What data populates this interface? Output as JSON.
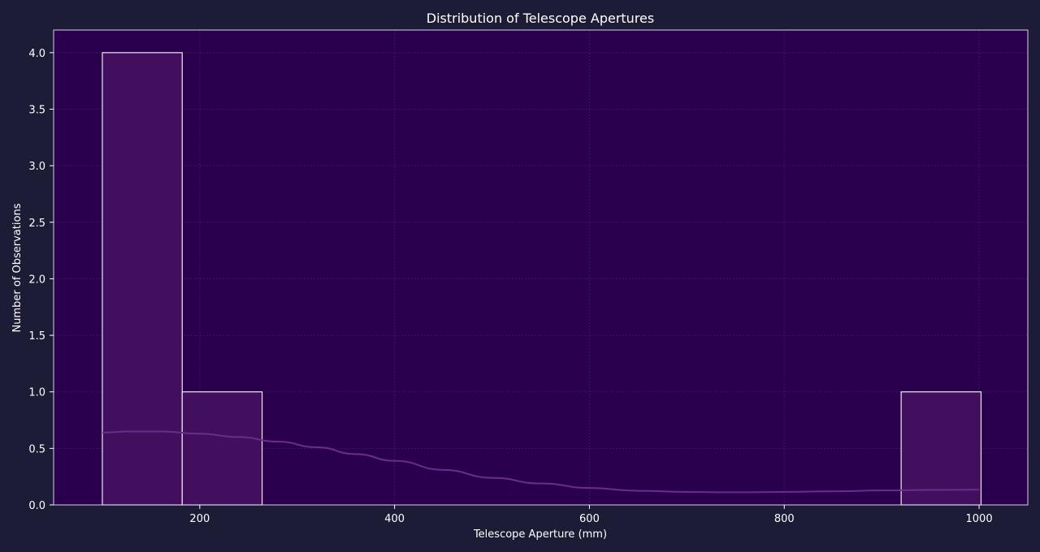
{
  "colors": {
    "figure_background": "#1c1c36",
    "plot_background": "#2a004e",
    "bar_fill": "#420e5e",
    "bar_edge": "#f0e8f8",
    "kde_line": "#6b2d8a",
    "grid": "#4a2a6a",
    "text": "#ffffff"
  },
  "chart_data": {
    "type": "bar",
    "subtype": "histogram",
    "title": "Distribution of Telescope Apertures",
    "xlabel": "Telescope Aperture (mm)",
    "ylabel": "Number of Observations",
    "xlim": [
      50,
      1050
    ],
    "ylim": [
      0,
      4.2
    ],
    "xticks": [
      200,
      400,
      600,
      800,
      1000
    ],
    "yticks": [
      0.0,
      0.5,
      1.0,
      1.5,
      2.0,
      2.5,
      3.0,
      3.5,
      4.0
    ],
    "bins": [
      {
        "x0": 100,
        "x1": 182,
        "count": 4
      },
      {
        "x0": 182,
        "x1": 264,
        "count": 1
      },
      {
        "x0": 264,
        "x1": 346,
        "count": 0
      },
      {
        "x0": 346,
        "x1": 428,
        "count": 0
      },
      {
        "x0": 428,
        "x1": 510,
        "count": 0
      },
      {
        "x0": 510,
        "x1": 592,
        "count": 0
      },
      {
        "x0": 592,
        "x1": 674,
        "count": 0
      },
      {
        "x0": 674,
        "x1": 756,
        "count": 0
      },
      {
        "x0": 756,
        "x1": 838,
        "count": 0
      },
      {
        "x0": 838,
        "x1": 920,
        "count": 0
      },
      {
        "x0": 920,
        "x1": 1002,
        "count": 1
      }
    ],
    "kde": {
      "x": [
        100,
        130,
        160,
        200,
        240,
        280,
        320,
        360,
        400,
        450,
        500,
        550,
        600,
        650,
        700,
        750,
        800,
        850,
        900,
        950,
        1000
      ],
      "y": [
        0.64,
        0.65,
        0.65,
        0.63,
        0.6,
        0.56,
        0.51,
        0.45,
        0.39,
        0.31,
        0.24,
        0.19,
        0.15,
        0.125,
        0.115,
        0.112,
        0.115,
        0.12,
        0.128,
        0.133,
        0.135
      ]
    },
    "grid": true,
    "legend": "none"
  }
}
